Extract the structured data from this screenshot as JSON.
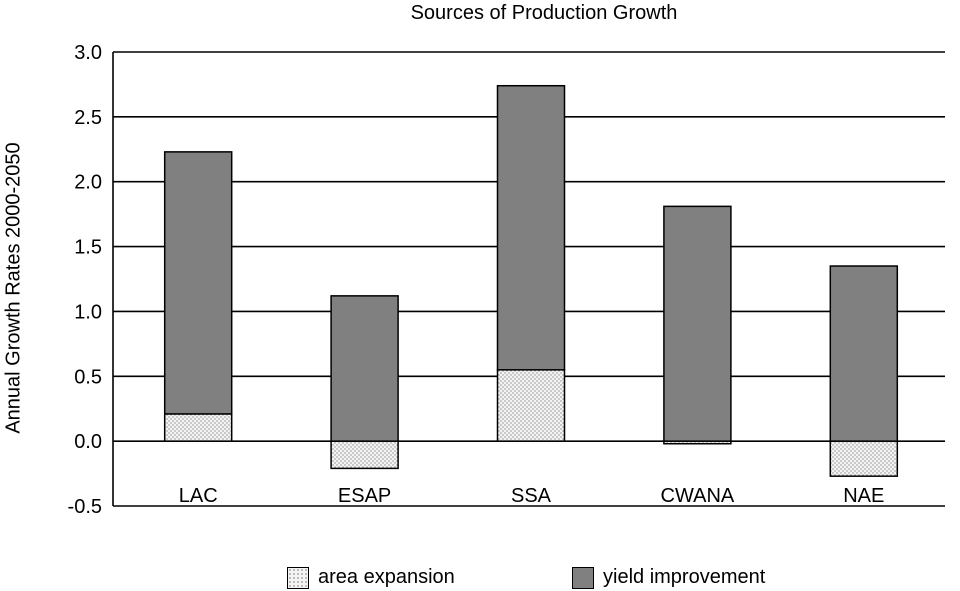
{
  "chart_data": {
    "type": "bar",
    "stacked": true,
    "title": "Sources of Production Growth",
    "xlabel": "",
    "ylabel": "Annual Growth Rates 2000-2050",
    "categories": [
      "LAC",
      "ESAP",
      "SSA",
      "CWANA",
      "NAE"
    ],
    "series": [
      {
        "name": "area expansion",
        "values": [
          0.21,
          -0.21,
          0.55,
          -0.02,
          -0.27
        ],
        "color": "#f3f3f3",
        "pattern": "dotted"
      },
      {
        "name": "yield improvement",
        "values": [
          2.02,
          1.12,
          2.19,
          1.81,
          1.35
        ],
        "color": "#808080"
      }
    ],
    "ylim": [
      -0.5,
      3.0
    ],
    "yticks": [
      "3.0",
      "2.5",
      "2.0",
      "1.5",
      "1.0",
      "0.5",
      "0.0",
      "-0.5"
    ],
    "grid": true,
    "legend_position": "bottom"
  }
}
